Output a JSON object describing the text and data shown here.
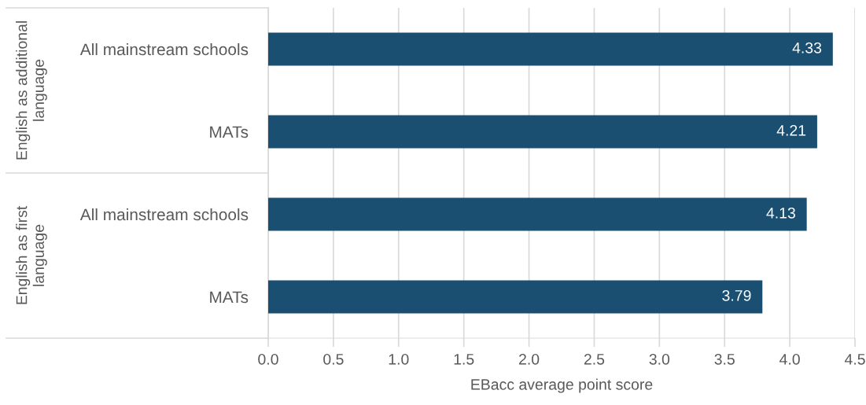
{
  "chart_data": {
    "type": "bar",
    "orientation": "horizontal",
    "categories": [
      "All mainstream schools",
      "MATs",
      "All mainstream schools",
      "MATs"
    ],
    "values": [
      4.33,
      4.21,
      4.13,
      3.79
    ],
    "color": "#1b4f72",
    "data_labels": true,
    "xlabel": "EBacc average point score",
    "xlim": [
      0,
      4.5
    ],
    "xticks": [
      {
        "value": 0,
        "label": "0.0"
      },
      {
        "value": 0.5,
        "label": "0.5"
      },
      {
        "value": 1,
        "label": "1.0"
      },
      {
        "value": 1.5,
        "label": "1.5"
      },
      {
        "value": 2,
        "label": "2.0"
      },
      {
        "value": 2.5,
        "label": "2.5"
      },
      {
        "value": 3,
        "label": "3.0"
      },
      {
        "value": 3.5,
        "label": "3.5"
      },
      {
        "value": 4,
        "label": "4.0"
      },
      {
        "value": 4.5,
        "label": "4.5"
      }
    ],
    "grid": "x",
    "annotations": [
      "English as additional language",
      "English as first language"
    ]
  }
}
